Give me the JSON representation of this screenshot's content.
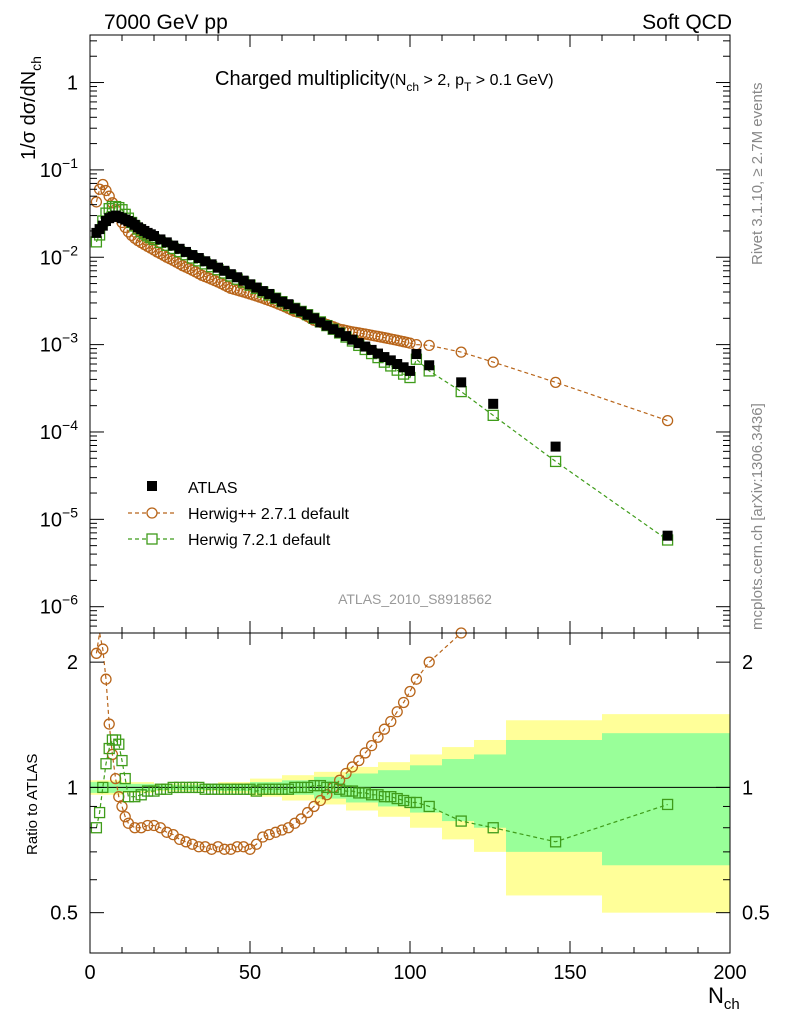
{
  "header": {
    "left": "7000 GeV pp",
    "right": "Soft QCD"
  },
  "side_labels": {
    "rivet": "Rivet 3.1.10, ≥ 2.7M events",
    "mcplots": "mcplots.cern.ch [arXiv:1306.3436]"
  },
  "colors": {
    "atlas": "#000000",
    "herwigpp": "#b8651a",
    "herwig7": "#3f9c1a",
    "band_outer": "#ffff99",
    "band_inner": "#99ff99"
  },
  "chart_data": [
    {
      "type": "scatter",
      "title_main": "Charged multiplicity",
      "title_cuts": "(N_ch > 2, p_T > 0.1 GeV)",
      "title_parts": {
        "main": "Charged multiplicity",
        "open": "(N",
        "sub1": "ch",
        "mid": " > 2, p",
        "sub2": "T",
        "close": " > 0.1 GeV)"
      },
      "watermark": "ATLAS_2010_S8918562",
      "ylabel": "1/σ dσ/dN_ch",
      "ylabel_parts": {
        "main": "1/σ dσ/dN",
        "sub": "ch"
      },
      "yscale": "log",
      "ylim": [
        5e-07,
        3.5
      ],
      "xlim": [
        0,
        200
      ],
      "y_tick_labels": [
        {
          "value": 1,
          "base": "1",
          "exp": ""
        },
        {
          "value": 0.1,
          "base": "10",
          "exp": "−1"
        },
        {
          "value": 0.01,
          "base": "10",
          "exp": "−2"
        },
        {
          "value": 0.001,
          "base": "10",
          "exp": "−3"
        },
        {
          "value": 0.0001,
          "base": "10",
          "exp": "−4"
        },
        {
          "value": 1e-05,
          "base": "10",
          "exp": "−5"
        },
        {
          "value": 1e-06,
          "base": "10",
          "exp": "−6"
        }
      ],
      "legend_position": "bottom-left",
      "series": [
        {
          "name": "ATLAS",
          "marker": "filled-square",
          "x": [
            2,
            3,
            4,
            5,
            6,
            7,
            8,
            9,
            10,
            11,
            12,
            13,
            14,
            15,
            16,
            17,
            18,
            19,
            20,
            22,
            24,
            26,
            28,
            30,
            32,
            34,
            36,
            38,
            40,
            42,
            44,
            46,
            48,
            50,
            52,
            54,
            56,
            58,
            60,
            62,
            64,
            66,
            68,
            70,
            72,
            74,
            76,
            78,
            80,
            82,
            84,
            86,
            88,
            90,
            92,
            94,
            96,
            98,
            100,
            102,
            106,
            116,
            126,
            145.5,
            180.5
          ],
          "y": [
            0.019,
            0.021,
            0.023,
            0.026,
            0.028,
            0.029,
            0.03,
            0.029,
            0.028,
            0.027,
            0.026,
            0.025,
            0.0235,
            0.022,
            0.021,
            0.02,
            0.019,
            0.0183,
            0.0175,
            0.016,
            0.0148,
            0.0136,
            0.0125,
            0.0115,
            0.0106,
            0.0098,
            0.009,
            0.0083,
            0.0076,
            0.007,
            0.0064,
            0.0059,
            0.0054,
            0.0049,
            0.0045,
            0.0041,
            0.0038,
            0.0034,
            0.0031,
            0.0029,
            0.0026,
            0.0024,
            0.0022,
            0.002,
            0.0018,
            0.00165,
            0.0015,
            0.00137,
            0.00125,
            0.00114,
            0.00104,
            0.00095,
            0.00087,
            0.00079,
            0.00072,
            0.00066,
            0.0006,
            0.00055,
            0.0005,
            0.00078,
            0.00058,
            0.00037,
            0.00021,
            6.8e-05,
            6.5e-06
          ]
        },
        {
          "name": "Herwig++ 2.7.1 default",
          "marker": "open-circle",
          "line": "dashed",
          "x": [
            2,
            3,
            4,
            5,
            6,
            7,
            8,
            9,
            10,
            11,
            12,
            13,
            14,
            15,
            16,
            17,
            18,
            19,
            20,
            21,
            22,
            23,
            24,
            25,
            26,
            27,
            28,
            29,
            30,
            31,
            32,
            33,
            34,
            35,
            36,
            37,
            38,
            39,
            40,
            41,
            42,
            43,
            44,
            45,
            46,
            47,
            48,
            49,
            50,
            51,
            52,
            53,
            54,
            55,
            56,
            57,
            58,
            59,
            60,
            61,
            62,
            63,
            64,
            65,
            66,
            67,
            68,
            69,
            70,
            71,
            72,
            73,
            74,
            75,
            76,
            77,
            78,
            79,
            80,
            81,
            82,
            83,
            84,
            85,
            86,
            87,
            88,
            89,
            90,
            91,
            92,
            93,
            94,
            95,
            96,
            97,
            98,
            99,
            100,
            102,
            106,
            116,
            126,
            145.5,
            180.5
          ],
          "y": [
            0.043,
            0.06,
            0.068,
            0.058,
            0.05,
            0.042,
            0.035,
            0.029,
            0.025,
            0.022,
            0.0195,
            0.0178,
            0.0165,
            0.0155,
            0.0147,
            0.014,
            0.0133,
            0.0127,
            0.0121,
            0.0115,
            0.011,
            0.0105,
            0.01,
            0.0096,
            0.0092,
            0.0088,
            0.0084,
            0.008,
            0.0077,
            0.0074,
            0.0071,
            0.0068,
            0.0065,
            0.0062,
            0.006,
            0.0058,
            0.0056,
            0.0054,
            0.0052,
            0.005,
            0.0048,
            0.0046,
            0.0044,
            0.0043,
            0.0042,
            0.0041,
            0.004,
            0.0039,
            0.0038,
            0.0037,
            0.0036,
            0.0035,
            0.0034,
            0.0033,
            0.0032,
            0.0031,
            0.003,
            0.0029,
            0.0028,
            0.0027,
            0.0026,
            0.0025,
            0.0024,
            0.00235,
            0.0023,
            0.0022,
            0.0021,
            0.002,
            0.0019,
            0.00185,
            0.0018,
            0.00175,
            0.0017,
            0.00165,
            0.0016,
            0.00155,
            0.0015,
            0.00148,
            0.00145,
            0.00142,
            0.0014,
            0.00138,
            0.00136,
            0.00134,
            0.00132,
            0.0013,
            0.00128,
            0.00126,
            0.00124,
            0.00122,
            0.0012,
            0.00118,
            0.00116,
            0.00114,
            0.00112,
            0.0011,
            0.00108,
            0.00106,
            0.00104,
            0.001,
            0.00098,
            0.00082,
            0.00063,
            0.00037,
            0.000135
          ]
        },
        {
          "name": "Herwig 7.2.1 default",
          "marker": "open-square",
          "line": "dashed",
          "x": [
            2,
            3,
            4,
            5,
            6,
            7,
            8,
            9,
            10,
            11,
            12,
            13,
            14,
            15,
            16,
            17,
            18,
            19,
            20,
            22,
            24,
            26,
            28,
            30,
            32,
            34,
            36,
            38,
            40,
            42,
            44,
            46,
            48,
            50,
            52,
            54,
            56,
            58,
            60,
            62,
            64,
            66,
            68,
            70,
            72,
            74,
            76,
            78,
            80,
            82,
            84,
            86,
            88,
            90,
            92,
            94,
            96,
            98,
            100,
            102,
            106,
            116,
            126,
            145.5,
            180.5
          ],
          "y": [
            0.015,
            0.018,
            0.026,
            0.032,
            0.036,
            0.038,
            0.038,
            0.037,
            0.035,
            0.031,
            0.028,
            0.025,
            0.0228,
            0.021,
            0.0196,
            0.0185,
            0.0176,
            0.0168,
            0.016,
            0.0148,
            0.0137,
            0.0126,
            0.0116,
            0.0107,
            0.0098,
            0.0091,
            0.0084,
            0.0078,
            0.0072,
            0.0066,
            0.0061,
            0.0056,
            0.0052,
            0.0048,
            0.0044,
            0.004,
            0.0037,
            0.0034,
            0.0031,
            0.0028,
            0.0026,
            0.0024,
            0.0022,
            0.002,
            0.00182,
            0.00165,
            0.0015,
            0.00136,
            0.00122,
            0.0011,
            0.00098,
            0.00088,
            0.00079,
            0.00071,
            0.00063,
            0.00057,
            0.00051,
            0.00046,
            0.00042,
            0.00068,
            0.0005,
            0.00029,
            0.000155,
            4.6e-05,
            5.8e-06
          ]
        }
      ]
    },
    {
      "type": "scatter",
      "ylabel": "Ratio to ATLAS",
      "xlabel": "N_ch",
      "xlabel_parts": {
        "main": "N",
        "sub": "ch"
      },
      "yscale": "log",
      "ylim": [
        0.4,
        2.35
      ],
      "xlim": [
        0,
        200
      ],
      "x_ticks": [
        0,
        50,
        100,
        150,
        200
      ],
      "x_tick_labels": [
        "0",
        "50",
        "100",
        "150",
        "200"
      ],
      "y_ticks": [
        0.5,
        1,
        2
      ],
      "y_tick_labels": [
        "0.5",
        "1",
        "2"
      ],
      "bands": {
        "edges": [
          0,
          10,
          20,
          30,
          40,
          50,
          60,
          70,
          80,
          90,
          100,
          110,
          120,
          130,
          160,
          200
        ],
        "outer_half_width": [
          0.04,
          0.03,
          0.02,
          0.02,
          0.03,
          0.05,
          0.07,
          0.09,
          0.12,
          0.15,
          0.2,
          0.25,
          0.3,
          0.45,
          0.5
        ],
        "inner_half_width": [
          0.03,
          0.02,
          0.015,
          0.015,
          0.02,
          0.03,
          0.04,
          0.06,
          0.08,
          0.1,
          0.13,
          0.17,
          0.2,
          0.3,
          0.35
        ]
      },
      "series": [
        {
          "name": "Herwig++ 2.7.1 default",
          "marker": "open-circle",
          "line": "dashed",
          "x": [
            2,
            3,
            4,
            5,
            6,
            7,
            8,
            9,
            10,
            11,
            12,
            14,
            16,
            18,
            20,
            22,
            24,
            26,
            28,
            30,
            32,
            34,
            36,
            38,
            40,
            42,
            44,
            46,
            48,
            50,
            52,
            54,
            56,
            58,
            60,
            62,
            64,
            66,
            68,
            70,
            72,
            74,
            76,
            78,
            80,
            82,
            84,
            86,
            88,
            90,
            92,
            94,
            96,
            98,
            100,
            102,
            106,
            116
          ],
          "y": [
            2.1,
            2.45,
            2.15,
            1.82,
            1.42,
            1.2,
            1.05,
            0.95,
            0.9,
            0.85,
            0.82,
            0.8,
            0.8,
            0.81,
            0.81,
            0.8,
            0.78,
            0.77,
            0.75,
            0.74,
            0.73,
            0.72,
            0.72,
            0.71,
            0.72,
            0.71,
            0.71,
            0.72,
            0.72,
            0.71,
            0.73,
            0.76,
            0.77,
            0.78,
            0.79,
            0.8,
            0.82,
            0.84,
            0.87,
            0.9,
            0.93,
            0.96,
            1.0,
            1.04,
            1.08,
            1.12,
            1.16,
            1.21,
            1.26,
            1.32,
            1.38,
            1.44,
            1.52,
            1.6,
            1.7,
            1.82,
            2.0,
            2.35
          ]
        },
        {
          "name": "Herwig 7.2.1 default",
          "marker": "open-square",
          "line": "dashed",
          "x": [
            2,
            3,
            4,
            5,
            6,
            7,
            8,
            9,
            10,
            11,
            12,
            14,
            16,
            18,
            20,
            22,
            24,
            26,
            28,
            30,
            32,
            34,
            36,
            38,
            40,
            42,
            44,
            46,
            48,
            50,
            52,
            54,
            56,
            58,
            60,
            62,
            64,
            66,
            68,
            70,
            72,
            74,
            76,
            78,
            80,
            82,
            84,
            86,
            88,
            90,
            92,
            94,
            96,
            98,
            100,
            102,
            106,
            116,
            126,
            145.5,
            180.5
          ],
          "y": [
            0.8,
            0.87,
            1.0,
            1.14,
            1.24,
            1.3,
            1.3,
            1.27,
            1.16,
            1.05,
            0.95,
            0.95,
            0.96,
            0.98,
            0.98,
            0.99,
            0.99,
            1.0,
            1.0,
            1.0,
            1.0,
            1.0,
            0.99,
            0.99,
            0.99,
            0.99,
            0.99,
            0.99,
            0.99,
            0.99,
            0.98,
            0.99,
            0.99,
            0.99,
            0.99,
            0.99,
            1.0,
            1.0,
            1.0,
            1.01,
            1.01,
            1.0,
            1.0,
            0.99,
            0.98,
            0.98,
            0.97,
            0.97,
            0.96,
            0.96,
            0.95,
            0.95,
            0.94,
            0.93,
            0.92,
            0.92,
            0.9,
            0.83,
            0.8,
            0.74,
            0.91
          ]
        }
      ]
    }
  ]
}
